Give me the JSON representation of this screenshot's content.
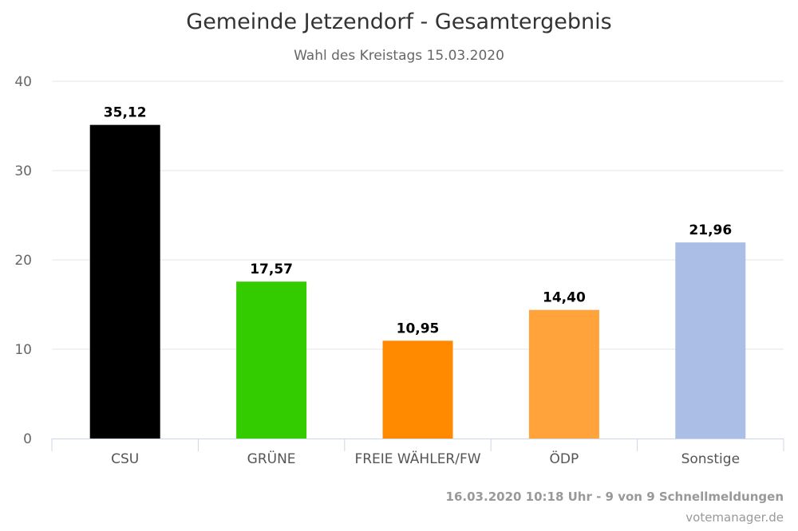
{
  "chart_data": {
    "type": "bar",
    "title": "Gemeinde Jetzendorf - Gesamtergebnis",
    "subtitle": "Wahl des Kreistags 15.03.2020",
    "categories": [
      "CSU",
      "GRÜNE",
      "FREIE WÄHLER/FW",
      "ÖDP",
      "Sonstige"
    ],
    "values": [
      35.12,
      17.57,
      10.95,
      14.4,
      21.96
    ],
    "data_labels": [
      "35,12",
      "17,57",
      "10,95",
      "14,40",
      "21,96"
    ],
    "colors": [
      "#000000",
      "#33cc00",
      "#ff8a00",
      "#ffa33a",
      "#abbfe6"
    ],
    "xlabel": "",
    "ylabel": "",
    "ylim": [
      0,
      40
    ],
    "yticks": [
      "0",
      "10",
      "20",
      "30",
      "40"
    ],
    "grid": true,
    "legend": "none"
  },
  "footer": {
    "status": "16.03.2020 10:18 Uhr - 9 von 9 Schnellmeldungen",
    "source": "votemanager.de"
  }
}
